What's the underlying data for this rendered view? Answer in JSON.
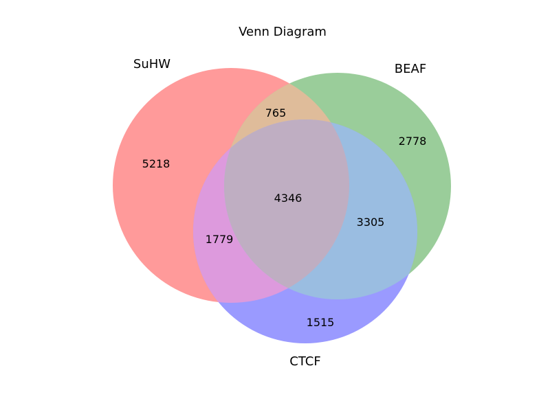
{
  "title": "Venn Diagram",
  "sets": {
    "suhw": {
      "label": "SuHW",
      "color": "#ff9a9a"
    },
    "beaf": {
      "label": "BEAF",
      "color": "#9acd9a"
    },
    "ctcf": {
      "label": "CTCF",
      "color": "#9a9aff"
    }
  },
  "regions": {
    "suhw_only": "5218",
    "beaf_only": "2778",
    "ctcf_only": "1515",
    "suhw_beaf": "765",
    "suhw_ctcf": "1779",
    "beaf_ctcf": "3305",
    "all_three": "4346"
  },
  "colors": {
    "suhw_beaf": "#dfbc9a",
    "suhw_ctcf": "#dd9add",
    "beaf_ctcf": "#9abde1",
    "all_three": "#bfaec2"
  }
}
